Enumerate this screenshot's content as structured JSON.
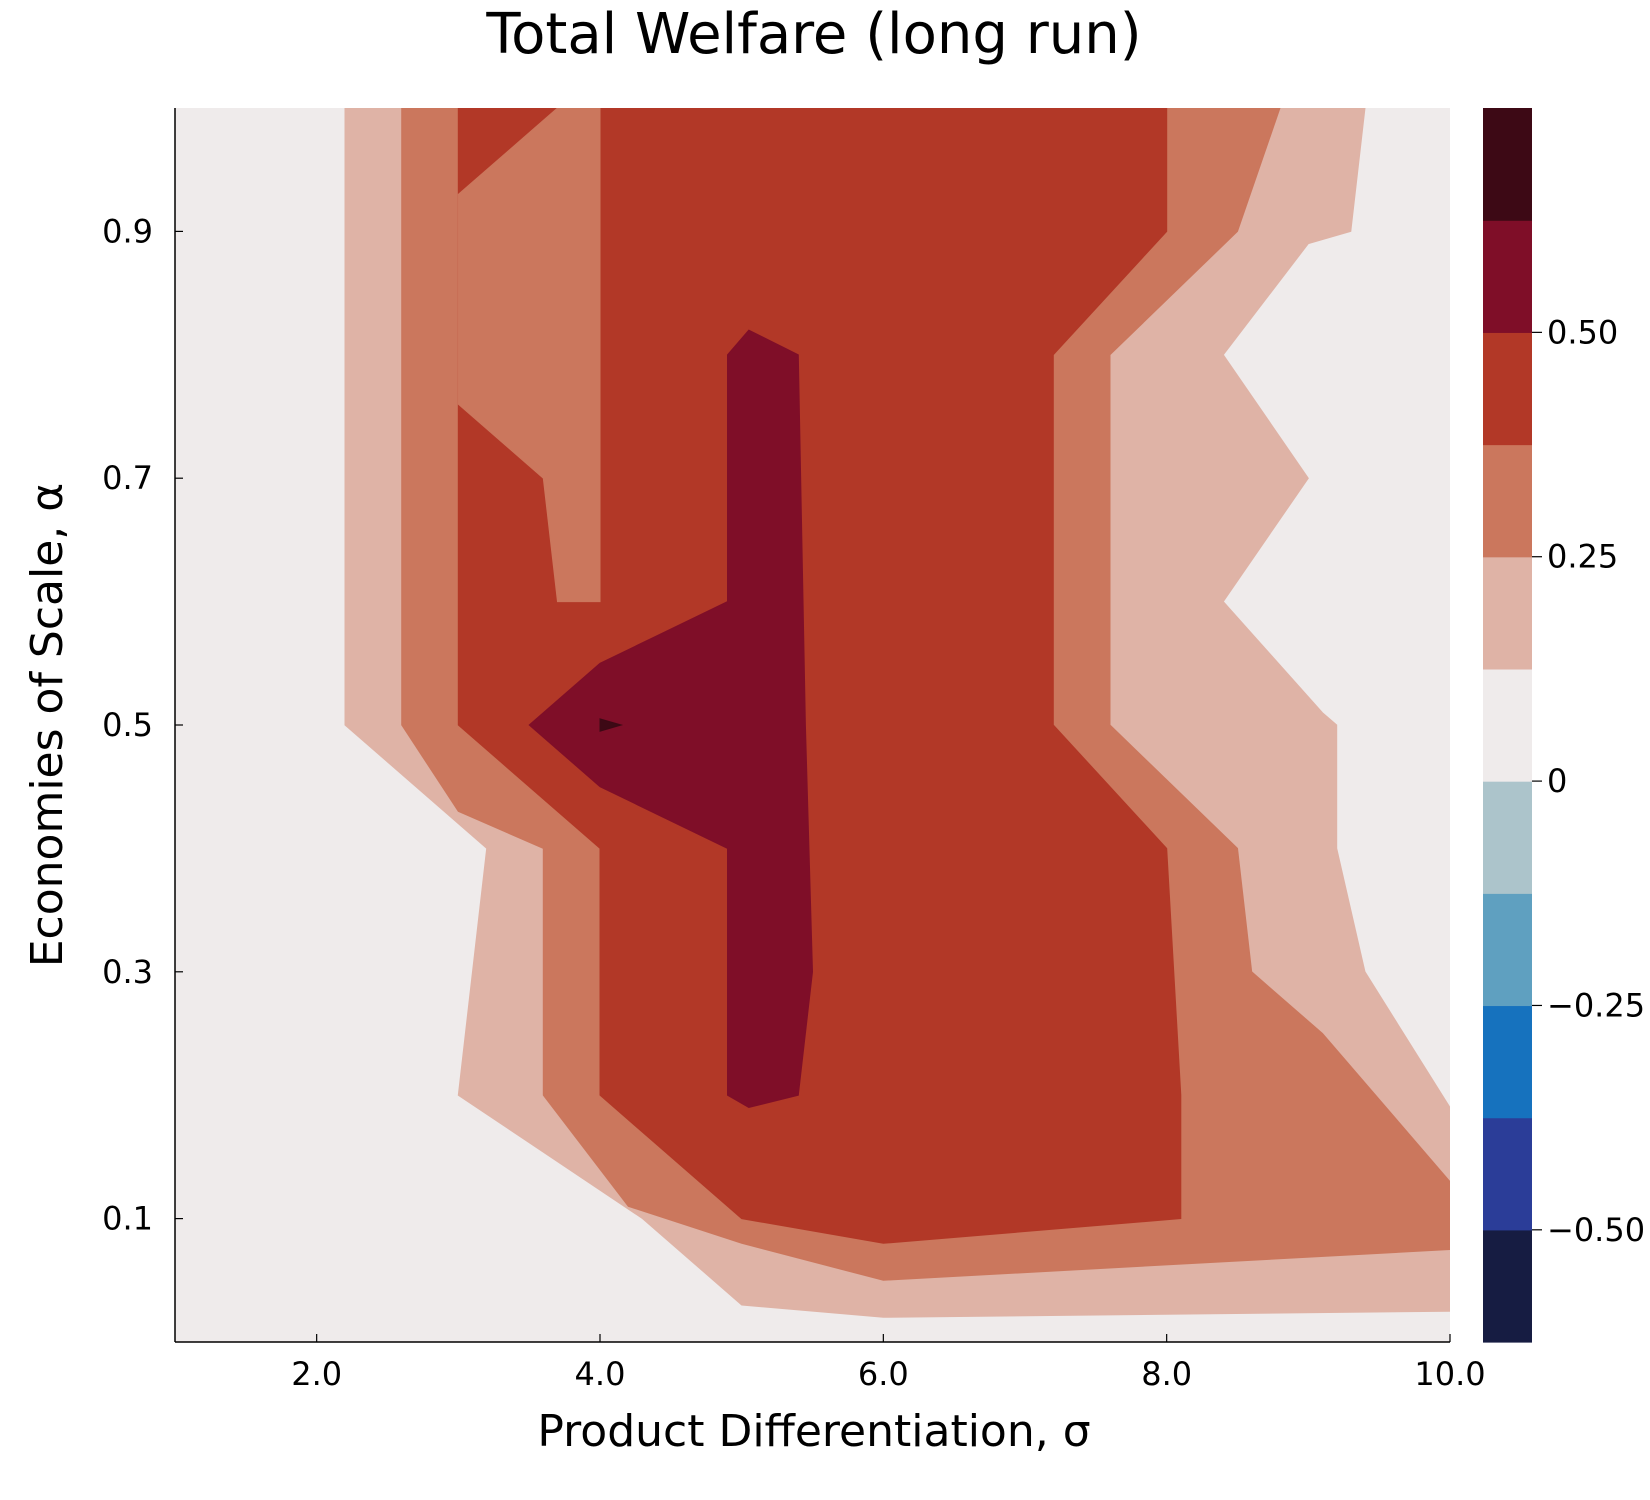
{
  "chart_data": {
    "type": "heatmap",
    "subtype": "filled-contour",
    "title": "Total Welfare (long run)",
    "xlabel": "Product Differentiation, σ",
    "ylabel": "Economies of Scale, α",
    "xlim": [
      1.0,
      10.0
    ],
    "ylim": [
      0.0,
      1.0
    ],
    "xticks": [
      2.0,
      4.0,
      6.0,
      8.0,
      10.0
    ],
    "xtick_labels": [
      "2.0",
      "4.0",
      "6.0",
      "8.0",
      "10.0"
    ],
    "yticks": [
      0.1,
      0.3,
      0.5,
      0.7,
      0.9
    ],
    "ytick_labels": [
      "0.1",
      "0.3",
      "0.5",
      "0.7",
      "0.9"
    ],
    "grid": false,
    "colorbar": {
      "range": [
        -0.625,
        0.625
      ],
      "ticks": [
        -0.5,
        -0.25,
        0,
        0.25,
        0.5
      ],
      "tick_labels": [
        "−0.50",
        "−0.25",
        "0",
        "0.25",
        "0.50"
      ],
      "levels": [
        {
          "from": -0.625,
          "to": -0.5,
          "color": "#161c42"
        },
        {
          "from": -0.5,
          "to": -0.375,
          "color": "#2b3d98"
        },
        {
          "from": -0.375,
          "to": -0.25,
          "color": "#1672be"
        },
        {
          "from": -0.25,
          "to": -0.125,
          "color": "#5fa0c0"
        },
        {
          "from": -0.125,
          "to": 0.0,
          "color": "#acc4cb"
        },
        {
          "from": 0.0,
          "to": 0.125,
          "color": "#efebeb"
        },
        {
          "from": 0.125,
          "to": 0.25,
          "color": "#dfb3a6"
        },
        {
          "from": 0.25,
          "to": 0.375,
          "color": "#cb775d"
        },
        {
          "from": 0.375,
          "to": 0.5,
          "color": "#b23827"
        },
        {
          "from": 0.5,
          "to": 0.625,
          "color": "#7f0e28"
        },
        {
          "from": 0.625,
          "to": 0.75,
          "color": "#3d0915"
        }
      ]
    },
    "regions": [
      {
        "level": "0.125 to 0.25",
        "color": "#dfb3a6",
        "boundary": [
          [
            2.2,
            1.0
          ],
          [
            9.4,
            1.0
          ],
          [
            9.3,
            0.9
          ],
          [
            9.0,
            0.89
          ],
          [
            8.4,
            0.8
          ],
          [
            9.0,
            0.7
          ],
          [
            8.4,
            0.6
          ],
          [
            9.1,
            0.51
          ],
          [
            9.2,
            0.5
          ],
          [
            9.2,
            0.4
          ],
          [
            9.4,
            0.3
          ],
          [
            10.0,
            0.19
          ],
          [
            10.0,
            0.025
          ],
          [
            6.0,
            0.02
          ],
          [
            5.0,
            0.03
          ],
          [
            4.3,
            0.1
          ],
          [
            3.0,
            0.2
          ],
          [
            3.2,
            0.4
          ],
          [
            2.2,
            0.5
          ]
        ]
      },
      {
        "level": "0.25 to 0.375",
        "color": "#cb775d",
        "boundary": [
          [
            2.6,
            1.0
          ],
          [
            8.8,
            1.0
          ],
          [
            8.5,
            0.9
          ],
          [
            7.6,
            0.8
          ],
          [
            7.6,
            0.5
          ],
          [
            8.5,
            0.4
          ],
          [
            8.6,
            0.3
          ],
          [
            9.1,
            0.25
          ],
          [
            10.0,
            0.13
          ],
          [
            10.0,
            0.075
          ],
          [
            6.0,
            0.05
          ],
          [
            5.0,
            0.08
          ],
          [
            4.2,
            0.11
          ],
          [
            3.6,
            0.2
          ],
          [
            3.6,
            0.4
          ],
          [
            3.0,
            0.43
          ],
          [
            2.6,
            0.5
          ]
        ]
      },
      {
        "level": "0.375 to 0.5",
        "color": "#b23827",
        "boundary": [
          [
            3.0,
            1.0
          ],
          [
            8.0,
            1.0
          ],
          [
            8.0,
            0.9
          ],
          [
            7.2,
            0.8
          ],
          [
            7.2,
            0.5
          ],
          [
            8.0,
            0.4
          ],
          [
            8.1,
            0.2
          ],
          [
            8.1,
            0.1
          ],
          [
            6.0,
            0.08
          ],
          [
            5.0,
            0.1
          ],
          [
            4.0,
            0.2
          ],
          [
            4.0,
            0.4
          ],
          [
            3.0,
            0.5
          ]
        ]
      },
      {
        "level": "0.25 to 0.375",
        "color": "#cb775d",
        "boundary": [
          [
            3.0,
            0.93
          ],
          [
            3.7,
            1.0
          ],
          [
            4.0,
            1.0
          ],
          [
            4.0,
            0.9
          ],
          [
            4.0,
            0.8
          ],
          [
            4.0,
            0.6
          ],
          [
            3.7,
            0.6
          ],
          [
            3.6,
            0.7
          ],
          [
            3.0,
            0.76
          ]
        ]
      },
      {
        "level": "0.5 to 0.625",
        "color": "#7f0e28",
        "boundary": [
          [
            4.9,
            0.8
          ],
          [
            5.05,
            0.82
          ],
          [
            5.4,
            0.8
          ],
          [
            5.45,
            0.5
          ],
          [
            5.5,
            0.3
          ],
          [
            5.4,
            0.2
          ],
          [
            5.05,
            0.19
          ],
          [
            4.9,
            0.2
          ],
          [
            4.9,
            0.4
          ],
          [
            4.0,
            0.45
          ],
          [
            3.5,
            0.5
          ],
          [
            4.0,
            0.55
          ],
          [
            4.9,
            0.6
          ]
        ]
      },
      {
        "level": "0.625 to 0.75",
        "color": "#3d0915",
        "boundary": [
          [
            4.0,
            0.505
          ],
          [
            4.15,
            0.5
          ],
          [
            4.0,
            0.495
          ]
        ]
      }
    ],
    "background_level": "0 to 0.125",
    "background_color": "#efebeb"
  }
}
